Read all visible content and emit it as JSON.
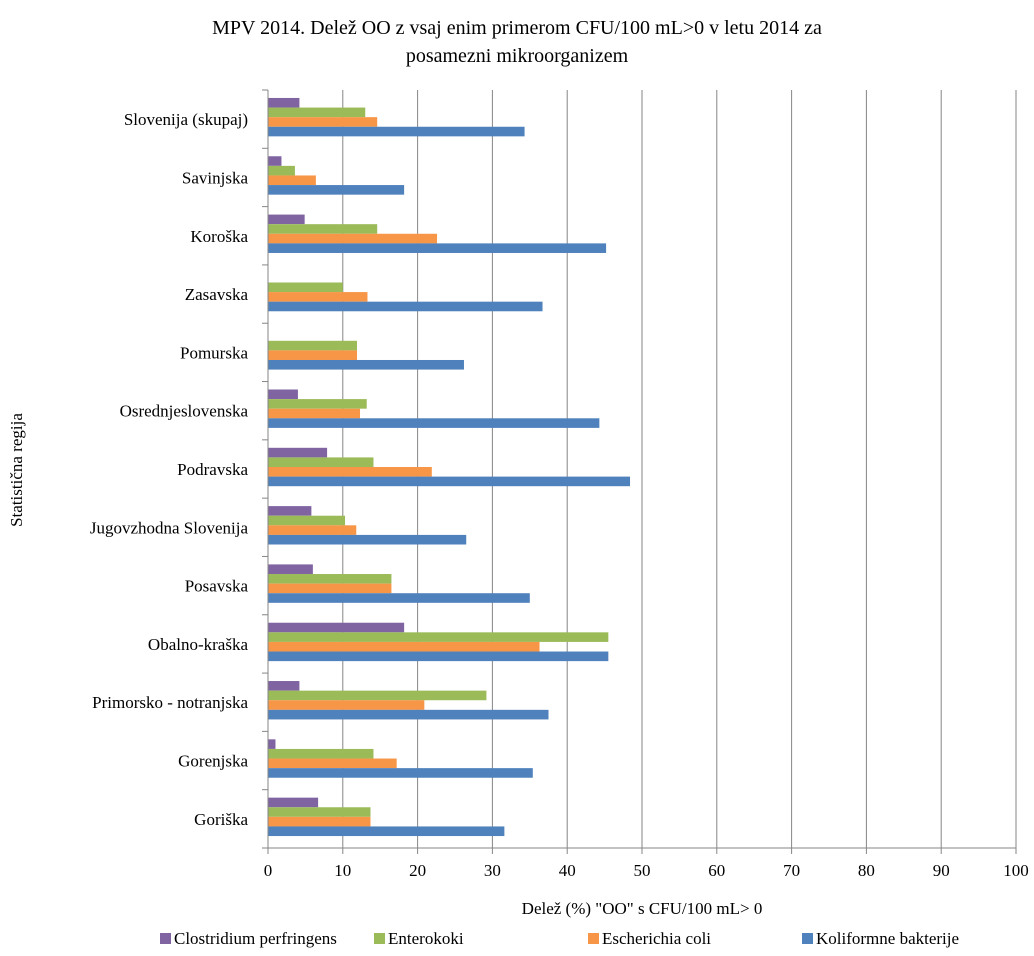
{
  "chart_data": {
    "type": "bar",
    "orientation": "horizontal",
    "title_lines": [
      "MPV 2014. Delež OO z vsaj enim primerom CFU/100 mL>0 v letu 2014 za",
      "posamezni mikroorganizem"
    ],
    "xlabel": "Delež (%) \"OO\" s CFU/100 mL> 0",
    "ylabel": "Statistična regija",
    "xlim": [
      0,
      100
    ],
    "xticks": [
      "0",
      "10",
      "20",
      "30",
      "40",
      "50",
      "60",
      "70",
      "80",
      "90",
      "100"
    ],
    "grid": "vertical",
    "legend_position": "bottom",
    "categories": [
      "Slovenija (skupaj)",
      "Savinjska",
      "Koroška",
      "Zasavska",
      "Pomurska",
      "Osrednjeslovenska",
      "Podravska",
      "Jugovzhodna Slovenija",
      "Posavska",
      "Obalno-kraška",
      "Primorsko - notranjska",
      "Gorenjska",
      "Goriška"
    ],
    "series": [
      {
        "name": "Clostridium perfringens",
        "color": "#8064A2",
        "values": [
          4.2,
          1.8,
          4.9,
          0,
          0,
          4.0,
          7.9,
          5.8,
          6.0,
          18.2,
          4.2,
          1.0,
          6.7
        ]
      },
      {
        "name": "Enterokoki",
        "color": "#9BBB59",
        "values": [
          13.0,
          3.6,
          14.6,
          10.0,
          11.9,
          13.2,
          14.1,
          10.3,
          16.5,
          45.5,
          29.2,
          14.1,
          13.7
        ]
      },
      {
        "name": "Escherichia coli",
        "color": "#F79646",
        "values": [
          14.6,
          6.4,
          22.6,
          13.3,
          11.9,
          12.3,
          21.9,
          11.8,
          16.5,
          36.3,
          20.9,
          17.2,
          13.7
        ]
      },
      {
        "name": "Koliformne bakterije",
        "color": "#4F81BD",
        "values": [
          34.3,
          18.2,
          45.2,
          36.7,
          26.2,
          44.3,
          48.4,
          26.5,
          35.0,
          45.5,
          37.5,
          35.4,
          31.6
        ]
      }
    ]
  }
}
